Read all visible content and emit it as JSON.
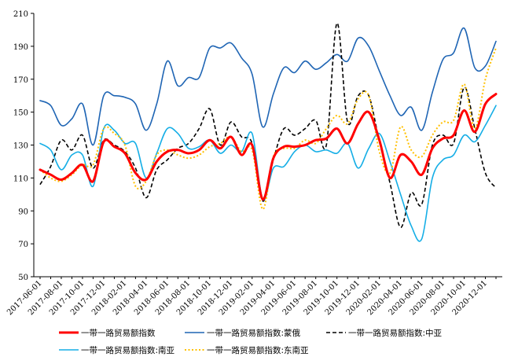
{
  "chart_data": {
    "type": "line",
    "x": [
      "2017-06-01",
      "2017-07-01",
      "2017-08-01",
      "2017-09-01",
      "2017-10-01",
      "2017-11-01",
      "2017-12-01",
      "2018-01-01",
      "2018-02-01",
      "2018-03-01",
      "2018-04-01",
      "2018-05-01",
      "2018-06-01",
      "2018-07-01",
      "2018-08-01",
      "2018-09-01",
      "2018-10-01",
      "2018-11-01",
      "2018-12-01",
      "2019-01-01",
      "2019-02-01",
      "2019-03-01",
      "2019-04-01",
      "2019-05-01",
      "2019-06-01",
      "2019-07-01",
      "2019-08-01",
      "2019-09-01",
      "2019-10-01",
      "2019-11-01",
      "2019-12-01",
      "2020-01-01",
      "2020-02-01",
      "2020-03-01",
      "2020-04-01",
      "2020-05-01",
      "2020-06-01",
      "2020-07-01",
      "2020-08-01",
      "2020-09-01",
      "2020-10-01",
      "2020-11-01",
      "2020-12-01",
      "2021-01-01"
    ],
    "x_tick_labels": [
      "2017-06-01",
      "2017-08-01",
      "2017-10-01",
      "2017-12-01",
      "2018-02-01",
      "2018-04-01",
      "2018-06-01",
      "2018-08-01",
      "2018-10-01",
      "2018-12-01",
      "2019-02-01",
      "2019-04-01",
      "2019-06-01",
      "2019-08-01",
      "2019-10-01",
      "2019-12-01",
      "2020-02-01",
      "2020-04-01",
      "2020-06-01",
      "2020-08-01",
      "2020-10-01",
      "2020-12-01"
    ],
    "ylim": [
      50,
      210
    ],
    "y_ticks": [
      50,
      70,
      90,
      110,
      130,
      150,
      170,
      190,
      210
    ],
    "grid": false,
    "legend_position": "bottom",
    "series": [
      {
        "name": "一带一路贸易额指数",
        "color": "#ff0000",
        "dash": "solid",
        "width": 3,
        "values": [
          115,
          112,
          109,
          113,
          118,
          108,
          132,
          129,
          125,
          113,
          109,
          120,
          126,
          127,
          125,
          127,
          133,
          128,
          135,
          124,
          130,
          97,
          122,
          129,
          129,
          130,
          133,
          134,
          140,
          131,
          143,
          150,
          133,
          110,
          124,
          120,
          112,
          128,
          134,
          136,
          151,
          138,
          155,
          161
        ]
      },
      {
        "name": "一带一路贸易额指数:蒙俄",
        "color": "#1f65b4",
        "dash": "solid",
        "width": 1.6,
        "values": [
          157,
          154,
          142,
          146,
          155,
          130,
          160,
          160,
          159,
          155,
          139,
          155,
          181,
          166,
          171,
          171,
          189,
          189,
          192,
          183,
          173,
          141,
          161,
          177,
          174,
          181,
          176,
          180,
          185,
          181,
          195,
          190,
          175,
          160,
          148,
          153,
          139,
          162,
          182,
          186,
          201,
          177,
          178,
          193
        ]
      },
      {
        "name": "一带一路贸易额指数:中亚",
        "color": "#000000",
        "dash": "dashed",
        "width": 1.6,
        "values": [
          106,
          117,
          133,
          127,
          136,
          116,
          133,
          130,
          126,
          116,
          98,
          115,
          121,
          128,
          131,
          140,
          152,
          130,
          144,
          135,
          131,
          96,
          121,
          140,
          136,
          140,
          145,
          130,
          204,
          144,
          160,
          160,
          132,
          107,
          80,
          101,
          94,
          130,
          136,
          131,
          165,
          140,
          113,
          104
        ]
      },
      {
        "name": "一带一路贸易额指数:南亚",
        "color": "#15aee6",
        "dash": "solid",
        "width": 1.6,
        "values": [
          131,
          127,
          115,
          124,
          124,
          105,
          140,
          139,
          131,
          131,
          110,
          125,
          140,
          137,
          128,
          129,
          133,
          125,
          130,
          126,
          137,
          97,
          116,
          117,
          126,
          130,
          126,
          127,
          125,
          131,
          116,
          128,
          137,
          120,
          100,
          81,
          73,
          110,
          121,
          124,
          136,
          132,
          142,
          154
        ]
      },
      {
        "name": "一带一路贸易额指数:东南亚",
        "color": "#ffc000",
        "dash": "dotted",
        "width": 2,
        "values": [
          115,
          110,
          108,
          112,
          118,
          118,
          140,
          137,
          130,
          105,
          108,
          124,
          127,
          124,
          122,
          124,
          129,
          131,
          135,
          126,
          127,
          91,
          123,
          128,
          128,
          133,
          131,
          140,
          148,
          143,
          158,
          160,
          126,
          113,
          141,
          127,
          123,
          136,
          144,
          145,
          167,
          140,
          170,
          189
        ]
      }
    ]
  }
}
